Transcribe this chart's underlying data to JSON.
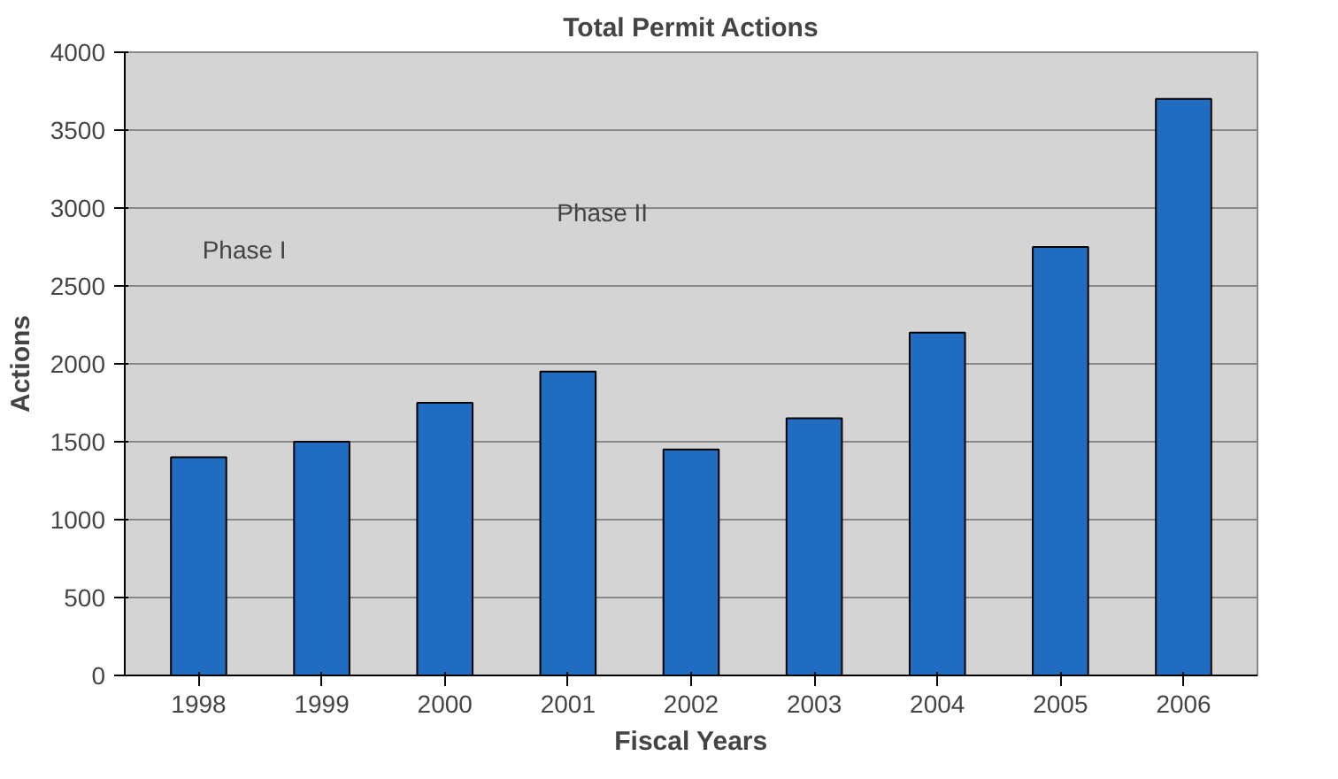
{
  "chart_data": {
    "type": "bar",
    "title": "Total Permit Actions",
    "xlabel": "Fiscal Years",
    "ylabel": "Actions",
    "categories": [
      "1998",
      "1999",
      "2000",
      "2001",
      "2002",
      "2003",
      "2004",
      "2005",
      "2006"
    ],
    "values": [
      1400,
      1500,
      1750,
      1950,
      1450,
      1650,
      2200,
      2750,
      3700
    ],
    "color": "#1f6cc0",
    "ylim": [
      0,
      4000
    ],
    "yticks": [
      0,
      500,
      1000,
      1500,
      2000,
      2500,
      3000,
      3500,
      4000
    ],
    "grid": "y",
    "annotations": [
      "Phase I",
      "Phase II"
    ]
  }
}
